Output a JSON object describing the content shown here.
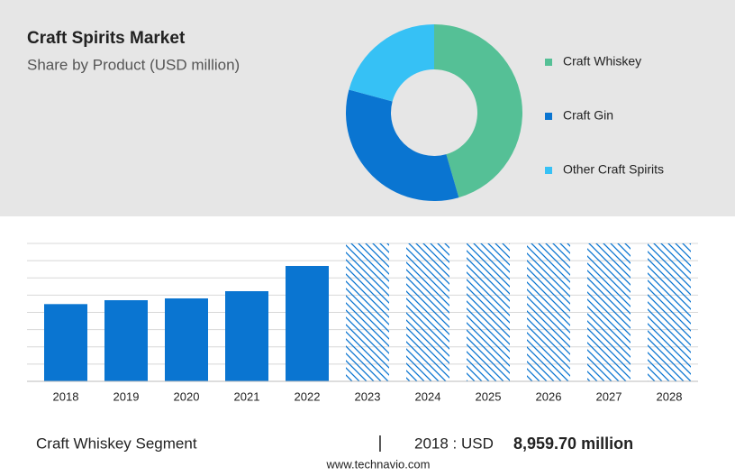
{
  "chart_data": [
    {
      "type": "pie",
      "title": "Craft Spirits Market",
      "subtitle": "Share by Product (USD million)",
      "categories": [
        "Craft Whiskey",
        "Craft Gin",
        "Other Craft Spirits"
      ],
      "values": [
        45.5,
        33.7,
        20.8
      ],
      "colors": [
        "#55c096",
        "#0a75d1",
        "#36c1f5"
      ]
    },
    {
      "type": "bar",
      "categories": [
        "2018",
        "2019",
        "2020",
        "2021",
        "2022",
        "2023",
        "2024",
        "2025",
        "2026",
        "2027",
        "2028"
      ],
      "values": [
        8959.7,
        9412,
        9621,
        10458,
        13386,
        16000,
        16000,
        16000,
        16000,
        16000,
        16000
      ],
      "hatched": [
        false,
        false,
        false,
        false,
        false,
        true,
        true,
        true,
        true,
        true,
        true
      ],
      "color": "#0a75d1",
      "ylim": [
        0,
        16000
      ],
      "grid": true
    }
  ],
  "footer": {
    "segment": "Craft Whiskey Segment",
    "separator": "|",
    "year_label": "2018 : USD",
    "value": "8,959.70 million",
    "source": "www.technavio.com"
  }
}
